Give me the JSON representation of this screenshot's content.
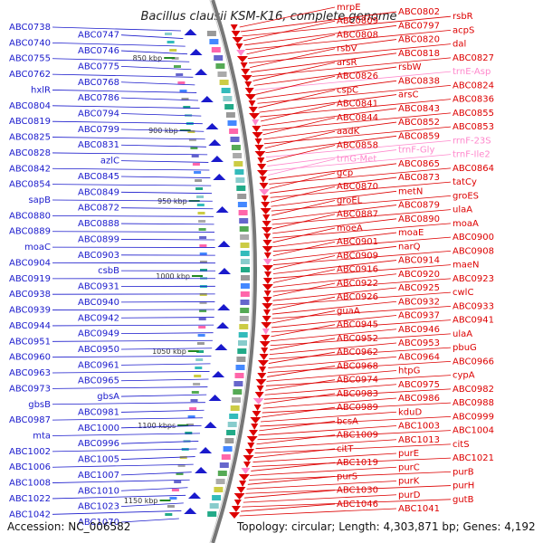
{
  "title": "Bacillus clausii KSM-K16, complete genome",
  "accession": "Accession: NC_006582",
  "topology": "Topology: circular; Length: 4,303,871 bp; Genes: 4,192",
  "colors": {
    "left": "#1a1acc",
    "right": "#dd0000",
    "rna": "#ff88cc",
    "backbone": "#777777"
  },
  "kbp_ticks": [
    "850 kbp",
    "900 kbp",
    "950 kbp",
    "1000 kbp",
    "1050 kbp",
    "1100 kbps",
    "1150 kbp"
  ],
  "left_labels": [
    "ABC0738",
    "ABC0747",
    "ABC0740",
    "ABC0746",
    "ABC0755",
    "ABC0775",
    "ABC0762",
    "ABC0768",
    "hxlR",
    "ABC0786",
    "ABC0804",
    "ABC0794",
    "ABC0819",
    "ABC0799",
    "ABC0825",
    "ABC0831",
    "ABC0828",
    "azlC",
    "ABC0842",
    "ABC0845",
    "ABC0854",
    "ABC0849",
    "sapB",
    "ABC0872",
    "ABC0880",
    "ABC0888",
    "ABC0889",
    "ABC0899",
    "moaC",
    "ABC0903",
    "ABC0904",
    "csbB",
    "ABC0919",
    "ABC0931",
    "ABC0938",
    "ABC0940",
    "ABC0939",
    "ABC0942",
    "ABC0944",
    "ABC0949",
    "ABC0951",
    "ABC0950",
    "ABC0960",
    "ABC0961",
    "ABC0963",
    "ABC0965",
    "ABC0973",
    "gbsA",
    "gbsB",
    "ABC0981",
    "ABC0987",
    "ABC1000",
    "mta",
    "ABC0996",
    "ABC1002",
    "ABC1005",
    "ABC1006",
    "ABC1007",
    "ABC1008",
    "ABC1010",
    "ABC1022",
    "ABC1023",
    "ABC1042",
    "ABC1070"
  ],
  "right_labels": [
    "mrpE",
    "ABC0802",
    "rsbR",
    "ABC0809",
    "ABC0797",
    "acpS",
    "ABC0808",
    "ABC0820",
    "dal",
    "rsbV",
    "ABC0818",
    "ABC0827",
    "arsR",
    "rsbW",
    "trnE-Asp",
    "ABC0826",
    "ABC0838",
    "ABC0824",
    "cspC",
    "arsC",
    "ABC0836",
    "ABC0841",
    "ABC0843",
    "ABC0855",
    "ABC0844",
    "ABC0852",
    "ABC0853",
    "aadK",
    "ABC0859",
    "rrnF-23S",
    "ABC0858",
    "trnF-Gly",
    "trnF-Ile2",
    "trnG-Met",
    "ABC0865",
    "ABC0864",
    "gcp",
    "ABC0873",
    "tatCy",
    "ABC0870",
    "metN",
    "groES",
    "groEL",
    "ABC0879",
    "ulaA",
    "ABC0887",
    "ABC0890",
    "moaA",
    "moeA",
    "moaE",
    "ABC0900",
    "ABC0901",
    "narQ",
    "ABC0908",
    "ABC0909",
    "ABC0914",
    "maeN",
    "ABC0916",
    "ABC0920",
    "ABC0923",
    "ABC0922",
    "ABC0925",
    "cwlC",
    "ABC0926",
    "ABC0932",
    "ABC0933",
    "guaA",
    "ABC0937",
    "ABC0941",
    "ABC0945",
    "ABC0946",
    "ulaA",
    "ABC0952",
    "ABC0953",
    "pbuG",
    "ABC0962",
    "ABC0964",
    "ABC0966",
    "ABC0968",
    "htpG",
    "cypA",
    "ABC0974",
    "ABC0975",
    "ABC0982",
    "ABC0983",
    "ABC0986",
    "ABC0988",
    "ABC0989",
    "kduD",
    "ABC0999",
    "bcsA",
    "ABC1003",
    "ABC1004",
    "ABC1009",
    "ABC1013",
    "citS",
    "citT",
    "purE",
    "ABC1021",
    "ABC1019",
    "purC",
    "purB",
    "purS",
    "purK",
    "purH",
    "ABC1030",
    "purD",
    "gutB",
    "ABC1046",
    "ABC1041"
  ]
}
